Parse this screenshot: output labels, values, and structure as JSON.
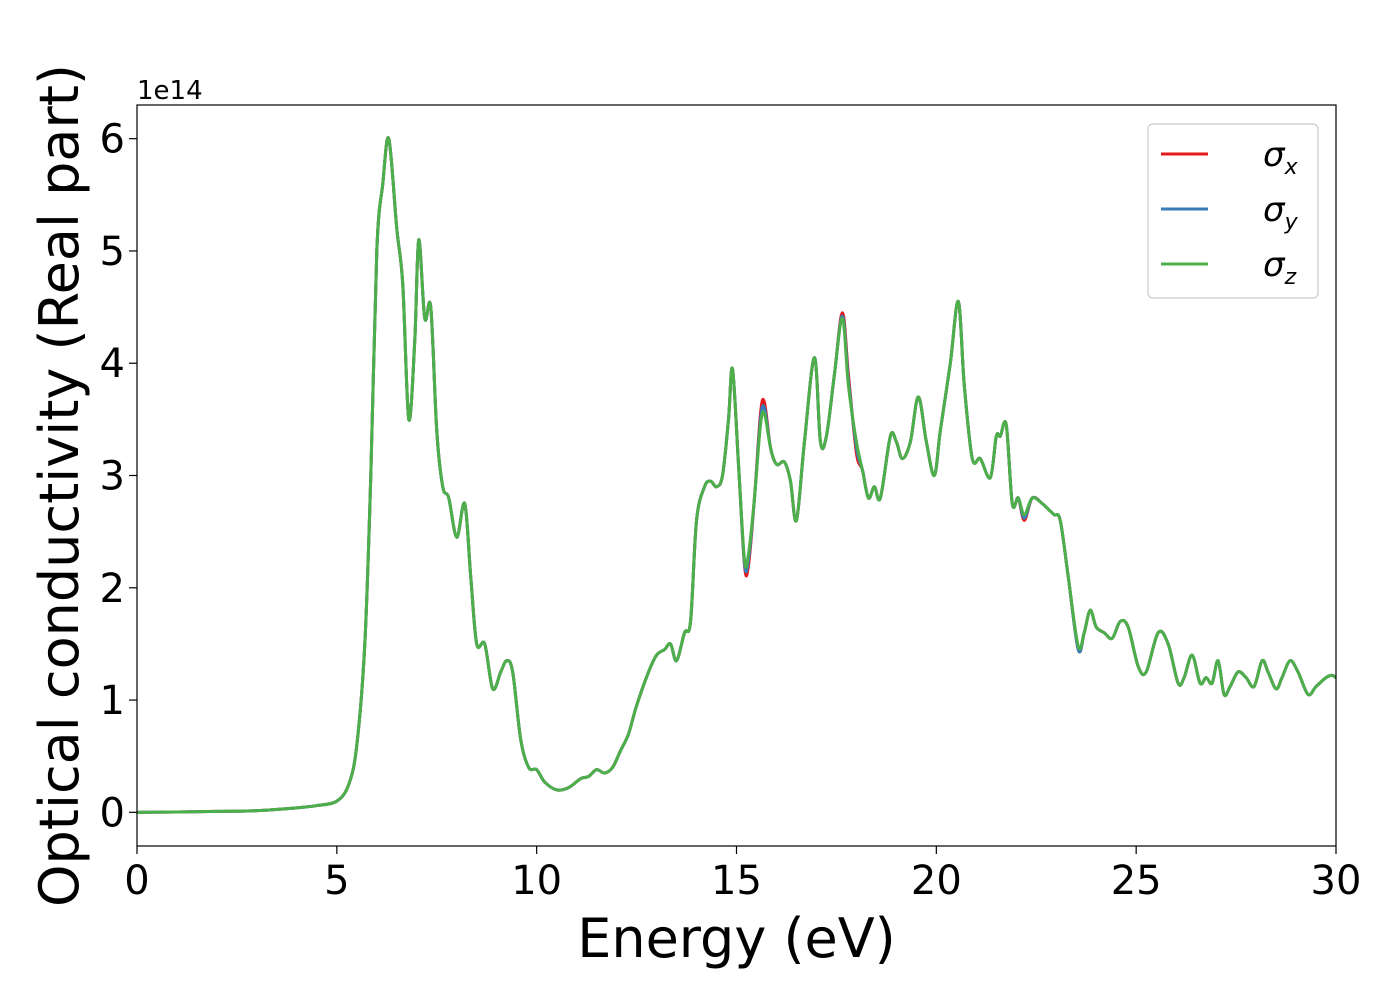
{
  "chart_data": {
    "type": "line",
    "title": "",
    "xlabel": "Energy (eV)",
    "ylabel": "Optical conductivity (Real part)",
    "y_offset_label": "1e14",
    "xlim": [
      0,
      30
    ],
    "ylim": [
      -0.3,
      6.3
    ],
    "xticks": [
      0,
      5,
      10,
      15,
      20,
      25,
      30
    ],
    "yticks": [
      0,
      1,
      2,
      3,
      4,
      5,
      6
    ],
    "grid": false,
    "legend_position": "top-right",
    "x": [
      0,
      1,
      2,
      3,
      4,
      4.5,
      5,
      5.3,
      5.5,
      5.7,
      5.85,
      6.0,
      6.15,
      6.3,
      6.5,
      6.65,
      6.8,
      6.95,
      7.05,
      7.2,
      7.35,
      7.5,
      7.65,
      7.8,
      8.0,
      8.2,
      8.35,
      8.5,
      8.7,
      8.9,
      9.1,
      9.25,
      9.4,
      9.6,
      9.8,
      10.0,
      10.2,
      10.5,
      10.8,
      11.1,
      11.3,
      11.5,
      11.7,
      11.9,
      12.1,
      12.3,
      12.5,
      12.8,
      13.0,
      13.2,
      13.35,
      13.5,
      13.7,
      13.85,
      14.0,
      14.2,
      14.35,
      14.5,
      14.65,
      14.8,
      14.9,
      15.05,
      15.2,
      15.3,
      15.45,
      15.6,
      15.7,
      15.85,
      16.0,
      16.2,
      16.35,
      16.5,
      16.7,
      16.95,
      17.1,
      17.25,
      17.45,
      17.65,
      17.8,
      18.0,
      18.15,
      18.3,
      18.45,
      18.6,
      18.85,
      19.0,
      19.15,
      19.35,
      19.55,
      19.75,
      19.95,
      20.1,
      20.35,
      20.55,
      20.7,
      20.9,
      21.1,
      21.35,
      21.5,
      21.6,
      21.75,
      21.9,
      22.05,
      22.2,
      22.4,
      22.65,
      22.8,
      22.95,
      23.1,
      23.3,
      23.55,
      23.7,
      23.85,
      24.0,
      24.2,
      24.4,
      24.6,
      24.8,
      25.05,
      25.25,
      25.55,
      25.8,
      26.05,
      26.2,
      26.4,
      26.6,
      26.75,
      26.9,
      27.05,
      27.2,
      27.35,
      27.55,
      27.75,
      27.95,
      28.15,
      28.3,
      28.5,
      28.65,
      28.85,
      29.05,
      29.3,
      29.5,
      29.75,
      29.9,
      30.0
    ],
    "series": [
      {
        "name": "σx",
        "color": "#e41a1c",
        "values": [
          0,
          0.003,
          0.008,
          0.015,
          0.04,
          0.06,
          0.1,
          0.25,
          0.6,
          1.5,
          3.0,
          5.0,
          5.6,
          6.0,
          5.2,
          4.7,
          3.5,
          4.2,
          5.1,
          4.4,
          4.5,
          3.4,
          2.9,
          2.8,
          2.45,
          2.75,
          2.1,
          1.5,
          1.5,
          1.1,
          1.25,
          1.35,
          1.25,
          0.65,
          0.4,
          0.38,
          0.27,
          0.2,
          0.22,
          0.3,
          0.32,
          0.38,
          0.35,
          0.4,
          0.55,
          0.7,
          0.95,
          1.25,
          1.4,
          1.45,
          1.5,
          1.35,
          1.6,
          1.7,
          2.6,
          2.9,
          2.95,
          2.9,
          3.0,
          3.5,
          3.95,
          3.1,
          2.2,
          2.2,
          2.8,
          3.55,
          3.65,
          3.25,
          3.1,
          3.12,
          2.95,
          2.6,
          3.3,
          4.05,
          3.3,
          3.35,
          3.9,
          4.45,
          3.9,
          3.2,
          3.05,
          2.8,
          2.9,
          2.8,
          3.35,
          3.3,
          3.15,
          3.3,
          3.7,
          3.3,
          3.0,
          3.4,
          4.0,
          4.55,
          3.8,
          3.15,
          3.15,
          2.98,
          3.35,
          3.35,
          3.45,
          2.75,
          2.8,
          2.6,
          2.8,
          2.75,
          2.7,
          2.65,
          2.6,
          2.1,
          1.45,
          1.6,
          1.8,
          1.65,
          1.6,
          1.55,
          1.7,
          1.65,
          1.3,
          1.25,
          1.6,
          1.5,
          1.15,
          1.2,
          1.4,
          1.15,
          1.2,
          1.15,
          1.35,
          1.05,
          1.12,
          1.25,
          1.2,
          1.12,
          1.35,
          1.25,
          1.1,
          1.2,
          1.35,
          1.25,
          1.05,
          1.12,
          1.2,
          1.22,
          1.2
        ]
      },
      {
        "name": "σy",
        "color": "#377eb8",
        "values": [
          0,
          0.003,
          0.008,
          0.015,
          0.04,
          0.06,
          0.1,
          0.25,
          0.6,
          1.5,
          3.0,
          5.0,
          5.6,
          6.0,
          5.2,
          4.7,
          3.5,
          4.2,
          5.1,
          4.4,
          4.5,
          3.4,
          2.9,
          2.8,
          2.45,
          2.75,
          2.1,
          1.5,
          1.5,
          1.1,
          1.25,
          1.35,
          1.25,
          0.65,
          0.4,
          0.38,
          0.27,
          0.2,
          0.22,
          0.3,
          0.32,
          0.38,
          0.35,
          0.4,
          0.55,
          0.7,
          0.95,
          1.25,
          1.4,
          1.45,
          1.5,
          1.35,
          1.6,
          1.7,
          2.6,
          2.9,
          2.95,
          2.9,
          3.0,
          3.5,
          3.95,
          3.1,
          2.22,
          2.25,
          2.8,
          3.5,
          3.6,
          3.25,
          3.1,
          3.12,
          2.95,
          2.6,
          3.3,
          4.05,
          3.3,
          3.35,
          3.9,
          4.42,
          3.85,
          3.25,
          3.05,
          2.8,
          2.9,
          2.8,
          3.35,
          3.3,
          3.15,
          3.3,
          3.7,
          3.3,
          3.0,
          3.4,
          4.0,
          4.55,
          3.8,
          3.15,
          3.15,
          2.98,
          3.35,
          3.35,
          3.45,
          2.75,
          2.8,
          2.62,
          2.8,
          2.75,
          2.7,
          2.65,
          2.6,
          2.1,
          1.45,
          1.6,
          1.8,
          1.65,
          1.6,
          1.55,
          1.7,
          1.65,
          1.3,
          1.25,
          1.6,
          1.5,
          1.15,
          1.2,
          1.4,
          1.15,
          1.2,
          1.15,
          1.35,
          1.05,
          1.12,
          1.25,
          1.2,
          1.12,
          1.35,
          1.25,
          1.1,
          1.2,
          1.35,
          1.25,
          1.05,
          1.12,
          1.2,
          1.22,
          1.2
        ]
      },
      {
        "name": "σz",
        "color": "#4daf4a",
        "values": [
          0,
          0.003,
          0.008,
          0.015,
          0.04,
          0.06,
          0.1,
          0.25,
          0.6,
          1.5,
          3.0,
          5.0,
          5.6,
          6.0,
          5.2,
          4.7,
          3.5,
          4.2,
          5.1,
          4.4,
          4.5,
          3.4,
          2.9,
          2.8,
          2.45,
          2.75,
          2.1,
          1.5,
          1.5,
          1.1,
          1.25,
          1.35,
          1.25,
          0.65,
          0.4,
          0.38,
          0.27,
          0.2,
          0.22,
          0.3,
          0.32,
          0.38,
          0.35,
          0.4,
          0.55,
          0.7,
          0.95,
          1.25,
          1.4,
          1.45,
          1.5,
          1.35,
          1.6,
          1.7,
          2.6,
          2.9,
          2.95,
          2.9,
          3.0,
          3.5,
          3.95,
          3.1,
          2.25,
          2.3,
          2.8,
          3.45,
          3.55,
          3.25,
          3.1,
          3.12,
          2.95,
          2.6,
          3.3,
          4.05,
          3.3,
          3.35,
          3.9,
          4.4,
          3.8,
          3.3,
          3.05,
          2.8,
          2.9,
          2.8,
          3.35,
          3.3,
          3.15,
          3.3,
          3.7,
          3.3,
          3.0,
          3.4,
          4.0,
          4.55,
          3.8,
          3.15,
          3.15,
          2.98,
          3.35,
          3.35,
          3.45,
          2.75,
          2.8,
          2.65,
          2.8,
          2.75,
          2.7,
          2.65,
          2.6,
          2.1,
          1.48,
          1.6,
          1.8,
          1.65,
          1.6,
          1.55,
          1.7,
          1.65,
          1.3,
          1.25,
          1.6,
          1.5,
          1.15,
          1.2,
          1.4,
          1.15,
          1.2,
          1.15,
          1.35,
          1.05,
          1.12,
          1.25,
          1.2,
          1.12,
          1.35,
          1.25,
          1.1,
          1.2,
          1.35,
          1.25,
          1.05,
          1.12,
          1.2,
          1.22,
          1.2
        ]
      }
    ]
  }
}
